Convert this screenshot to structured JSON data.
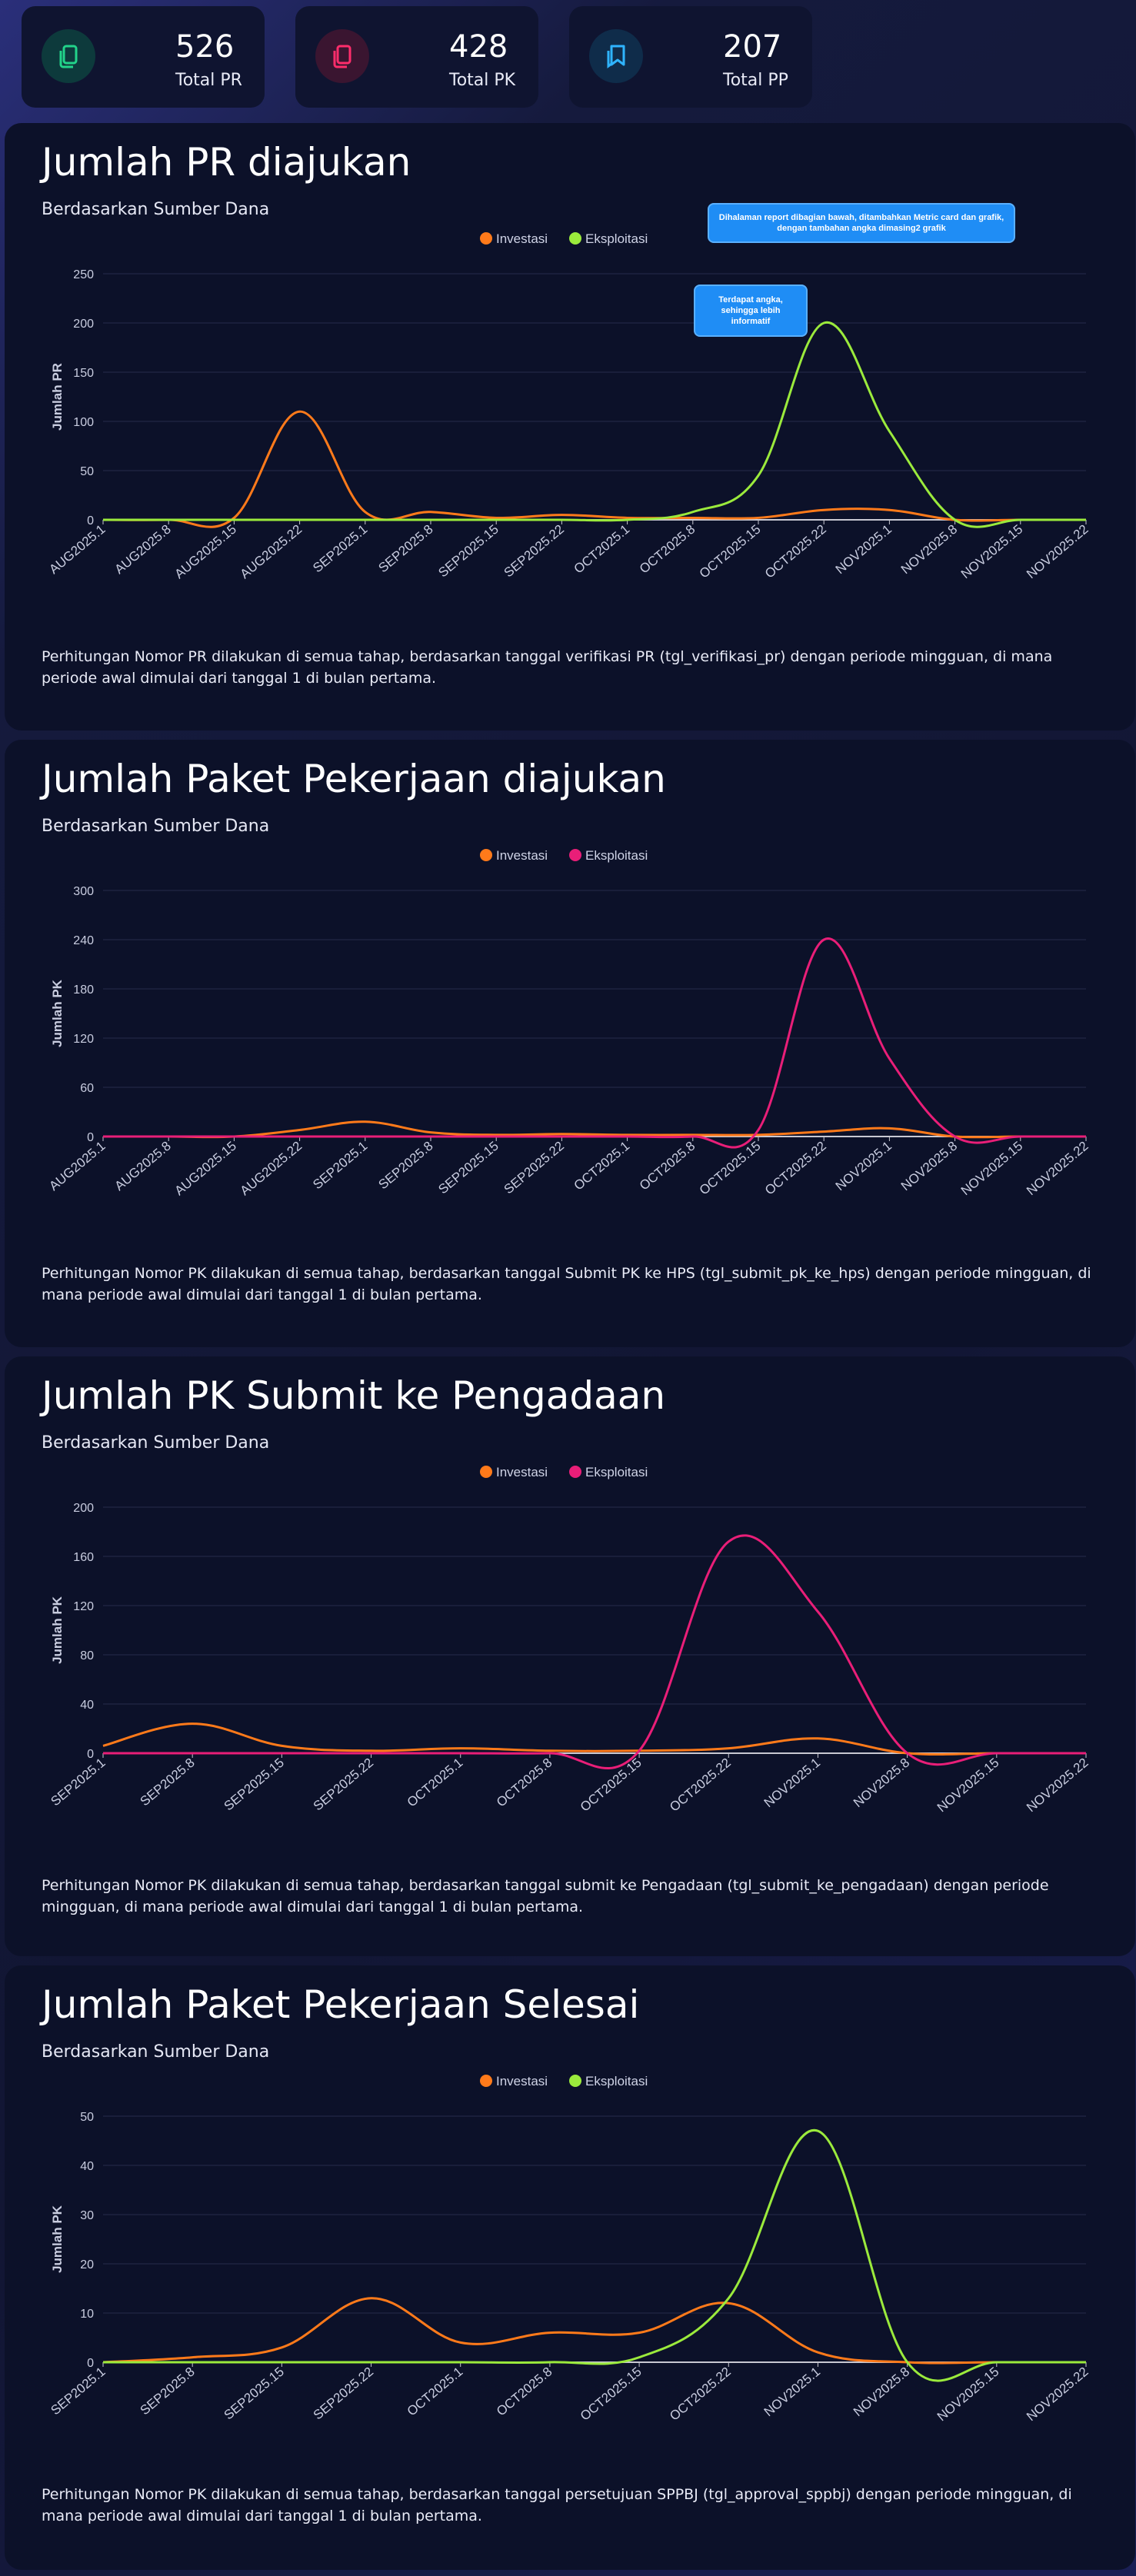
{
  "metrics": [
    {
      "value": "526",
      "label": "Total PR",
      "color": "#22d38a",
      "icon": "document-copy-icon"
    },
    {
      "value": "428",
      "label": "Total PK",
      "color": "#ff2d6b",
      "icon": "document-copy-icon"
    },
    {
      "value": "207",
      "label": "Total PP",
      "color": "#2fb4ff",
      "icon": "bookmark-copy-icon"
    }
  ],
  "callouts": [
    "Dihalaman report dibagian bawah, ditambahkan Metric card dan grafik, dengan tambahan angka dimasing2 grafik",
    "Terdapat angka, sehingga lebih informatif"
  ],
  "cards": [
    {
      "title": "Jumlah PR diajukan",
      "subtitle": "Berdasarkan Sumber Dana",
      "footer": "Perhitungan Nomor PR dilakukan di semua tahap, berdasarkan tanggal verifikasi PR (tgl_verifikasi_pr) dengan periode mingguan, di mana periode awal dimulai dari tanggal 1 di bulan pertama."
    },
    {
      "title": "Jumlah Paket Pekerjaan diajukan",
      "subtitle": "Berdasarkan Sumber Dana",
      "footer": "Perhitungan Nomor PK dilakukan di semua tahap, berdasarkan tanggal Submit PK ke HPS (tgl_submit_pk_ke_hps) dengan periode mingguan, di mana periode awal dimulai dari tanggal 1 di bulan pertama."
    },
    {
      "title": "Jumlah PK Submit ke Pengadaan",
      "subtitle": "Berdasarkan Sumber Dana",
      "footer": "Perhitungan Nomor PK dilakukan di semua tahap, berdasarkan tanggal submit ke Pengadaan (tgl_submit_ke_pengadaan) dengan periode mingguan, di mana periode awal dimulai dari tanggal 1 di bulan pertama."
    },
    {
      "title": "Jumlah Paket Pekerjaan Selesai",
      "subtitle": "Berdasarkan Sumber Dana",
      "footer": "Perhitungan Nomor PK dilakukan di semua tahap, berdasarkan tanggal persetujuan SPPBJ (tgl_approval_sppbj) dengan periode mingguan, di mana periode awal dimulai dari tanggal 1 di bulan pertama."
    }
  ],
  "chart_data": [
    {
      "type": "line",
      "categories": [
        "AUG2025.1",
        "AUG2025.8",
        "AUG2025.15",
        "AUG2025.22",
        "SEP2025.1",
        "SEP2025.8",
        "SEP2025.15",
        "SEP2025.22",
        "OCT2025.1",
        "OCT2025.8",
        "OCT2025.15",
        "OCT2025.22",
        "NOV2025.1",
        "NOV2025.8",
        "NOV2025.15",
        "NOV2025.22"
      ],
      "ylabel": "Jumlah PR",
      "ylim": [
        0,
        250
      ],
      "yticks": [
        0,
        50,
        100,
        150,
        200,
        250
      ],
      "series": [
        {
          "name": "Investasi",
          "color": "#ff7a1a",
          "values": [
            0,
            0,
            2,
            110,
            8,
            8,
            2,
            5,
            2,
            2,
            2,
            10,
            10,
            0,
            0,
            0
          ]
        },
        {
          "name": "Eksploitasi",
          "color": "#9bea3c",
          "values": [
            0,
            0,
            0,
            0,
            0,
            0,
            0,
            0,
            0,
            8,
            45,
            200,
            90,
            0,
            0,
            0
          ]
        }
      ]
    },
    {
      "type": "line",
      "categories": [
        "AUG2025.1",
        "AUG2025.8",
        "AUG2025.15",
        "AUG2025.22",
        "SEP2025.1",
        "SEP2025.8",
        "SEP2025.15",
        "SEP2025.22",
        "OCT2025.1",
        "OCT2025.8",
        "OCT2025.15",
        "OCT2025.22",
        "NOV2025.1",
        "NOV2025.8",
        "NOV2025.15",
        "NOV2025.22"
      ],
      "ylabel": "Jumlah PK",
      "ylim": [
        0,
        300
      ],
      "yticks": [
        0,
        60,
        120,
        180,
        240,
        300
      ],
      "series": [
        {
          "name": "Investasi",
          "color": "#ff7a1a",
          "values": [
            0,
            0,
            0,
            8,
            18,
            5,
            2,
            3,
            2,
            2,
            2,
            6,
            10,
            0,
            0,
            0
          ]
        },
        {
          "name": "Eksploitasi",
          "color": "#e91e78",
          "values": [
            0,
            0,
            0,
            0,
            0,
            0,
            0,
            0,
            0,
            0,
            8,
            240,
            95,
            0,
            0,
            0
          ]
        }
      ]
    },
    {
      "type": "line",
      "categories": [
        "SEP2025.1",
        "SEP2025.8",
        "SEP2025.15",
        "SEP2025.22",
        "OCT2025.1",
        "OCT2025.8",
        "OCT2025.15",
        "OCT2025.22",
        "NOV2025.1",
        "NOV2025.8",
        "NOV2025.15",
        "NOV2025.22"
      ],
      "ylabel": "Jumlah PK",
      "ylim": [
        0,
        200
      ],
      "yticks": [
        0,
        40,
        80,
        120,
        160,
        200
      ],
      "series": [
        {
          "name": "Investasi",
          "color": "#ff7a1a",
          "values": [
            6,
            24,
            6,
            2,
            4,
            2,
            2,
            4,
            12,
            0,
            0,
            0
          ]
        },
        {
          "name": "Eksploitasi",
          "color": "#e91e78",
          "values": [
            0,
            0,
            0,
            0,
            0,
            0,
            2,
            172,
            115,
            0,
            0,
            0
          ]
        }
      ]
    },
    {
      "type": "line",
      "categories": [
        "SEP2025.1",
        "SEP2025.8",
        "SEP2025.15",
        "SEP2025.22",
        "OCT2025.1",
        "OCT2025.8",
        "OCT2025.15",
        "OCT2025.22",
        "NOV2025.1",
        "NOV2025.8",
        "NOV2025.15",
        "NOV2025.22"
      ],
      "ylabel": "Jumlah PK",
      "ylim": [
        0,
        50
      ],
      "yticks": [
        0,
        10,
        20,
        30,
        40,
        50
      ],
      "series": [
        {
          "name": "Investasi",
          "color": "#ff7a1a",
          "values": [
            0,
            1,
            3,
            13,
            4,
            6,
            6,
            12,
            2,
            0,
            0,
            0
          ]
        },
        {
          "name": "Eksploitasi",
          "color": "#9bea3c",
          "values": [
            0,
            0,
            0,
            0,
            0,
            0,
            1,
            13,
            47,
            0,
            0,
            0
          ]
        }
      ]
    }
  ]
}
